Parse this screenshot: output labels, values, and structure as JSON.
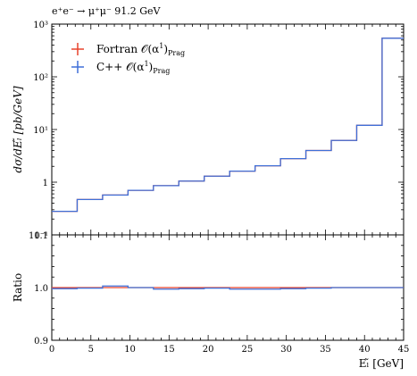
{
  "chart_data": [
    {
      "type": "line",
      "title": "e⁺e⁻ → μ⁺μ⁻ 91.2 GeV",
      "xlabel": "",
      "ylabel": "dσ/dEₗ̃ [pb/GeV]",
      "xlim": [
        0,
        45
      ],
      "ylim": [
        0.1,
        1000
      ],
      "yscale": "log",
      "y_tick_labels": [
        "10⁻¹",
        "1",
        "10¹",
        "10²",
        "10³"
      ],
      "y_tick_values": [
        0.1,
        1,
        10,
        100,
        1000
      ],
      "bin_edges": [
        0,
        3.25,
        6.5,
        9.75,
        13,
        16.25,
        19.5,
        22.75,
        26,
        29.25,
        32.5,
        35.75,
        39,
        42.25,
        45
      ],
      "series": [
        {
          "name": "Fortran 𝒪(α¹)Prag",
          "legend_main": "Fortran 𝒪(α",
          "legend_sup": "1",
          "legend_close": ")",
          "legend_sub": "Prag",
          "color": "#e8432c",
          "values": [
            0.28,
            0.47,
            0.57,
            0.7,
            0.86,
            1.05,
            1.3,
            1.62,
            2.05,
            2.8,
            4.0,
            6.2,
            12.0,
            540
          ]
        },
        {
          "name": "C++ 𝒪(α¹)Prag",
          "legend_main": "C++ 𝒪(α",
          "legend_sup": "1",
          "legend_close": ")",
          "legend_sub": "Prag",
          "color": "#3f6fd8",
          "values": [
            0.28,
            0.47,
            0.57,
            0.7,
            0.86,
            1.05,
            1.3,
            1.62,
            2.05,
            2.8,
            4.0,
            6.2,
            12.0,
            540
          ]
        }
      ],
      "legend_position": "top-left"
    },
    {
      "type": "line",
      "title": "",
      "xlabel": "Eₗ̃ [GeV]",
      "ylabel": "Ratio",
      "xlim": [
        0,
        45
      ],
      "ylim": [
        0.9,
        1.1
      ],
      "x_ticks": [
        0,
        5,
        10,
        15,
        20,
        25,
        30,
        35,
        40,
        45
      ],
      "y_ticks": [
        0.9,
        1.0,
        1.1
      ],
      "y_tick_labels": [
        "0.9",
        "1.0",
        "1.1"
      ],
      "bin_edges": [
        0,
        3.25,
        6.5,
        9.75,
        13,
        16.25,
        19.5,
        22.75,
        26,
        29.25,
        32.5,
        35.75,
        39,
        42.25,
        45
      ],
      "series": [
        {
          "name": "Fortran 𝒪(α¹)Prag",
          "color": "#e8432c",
          "values": [
            1.0,
            1.0,
            1.0,
            1.0,
            1.0,
            1.0,
            1.0,
            1.0,
            1.0,
            1.0,
            1.0,
            1.0,
            1.0,
            1.0
          ]
        },
        {
          "name": "C++ 𝒪(α¹)Prag",
          "color": "#3f6fd8",
          "values": [
            0.998,
            0.999,
            1.003,
            1.0,
            0.997,
            0.998,
            0.999,
            0.997,
            0.997,
            0.998,
            0.999,
            1.0,
            1.0,
            1.0
          ]
        }
      ]
    }
  ]
}
